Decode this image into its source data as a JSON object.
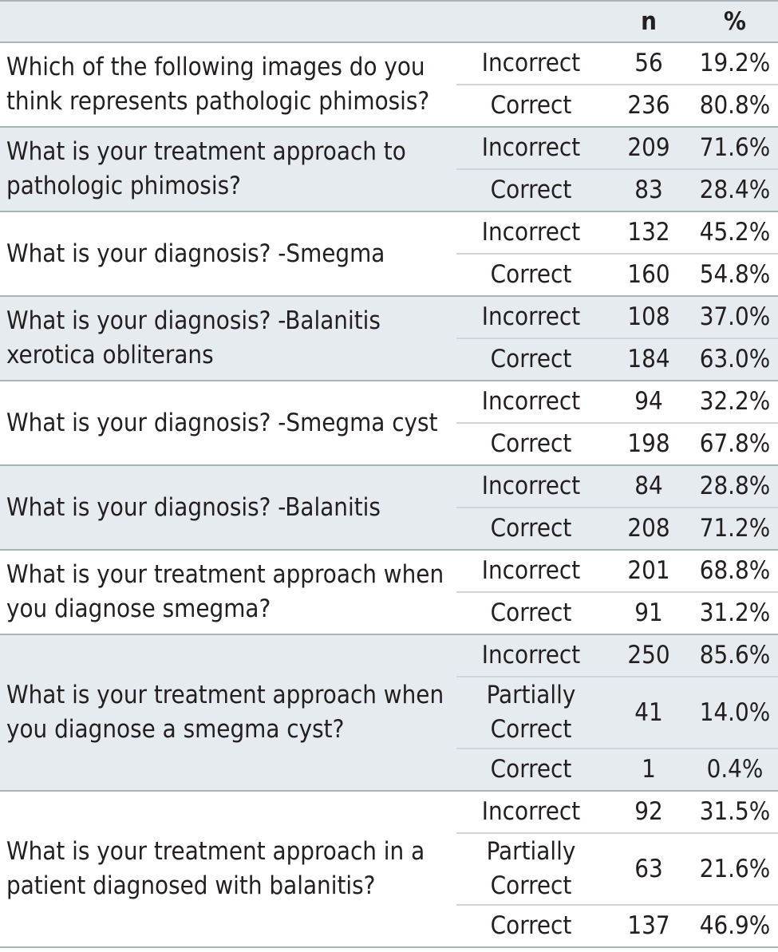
{
  "header": {
    "col1": "",
    "col2": "",
    "col3": "n",
    "col4": "%"
  },
  "questions": [
    {
      "question": "Which of the following images do you think represents pathologic phimosis?",
      "rows": [
        {
          "answer": "Incorrect",
          "n": "56",
          "pct": "19.2%"
        },
        {
          "answer": "Correct",
          "n": "236",
          "pct": "80.8%"
        }
      ]
    },
    {
      "question": "What is your treatment approach to pathologic phimosis?",
      "rows": [
        {
          "answer": "Incorrect",
          "n": "209",
          "pct": "71.6%"
        },
        {
          "answer": "Correct",
          "n": "83",
          "pct": "28.4%"
        }
      ]
    },
    {
      "question": "What is your diagnosis? -Smegma",
      "rows": [
        {
          "answer": "Incorrect",
          "n": "132",
          "pct": "45.2%"
        },
        {
          "answer": "Correct",
          "n": "160",
          "pct": "54.8%"
        }
      ]
    },
    {
      "question": "What is your diagnosis? -Balanitis xerotica obliterans",
      "rows": [
        {
          "answer": "Incorrect",
          "n": "108",
          "pct": "37.0%"
        },
        {
          "answer": "Correct",
          "n": "184",
          "pct": "63.0%"
        }
      ]
    },
    {
      "question": "What is your diagnosis? -Smegma cyst",
      "rows": [
        {
          "answer": "Incorrect",
          "n": "94",
          "pct": "32.2%"
        },
        {
          "answer": "Correct",
          "n": "198",
          "pct": "67.8%"
        }
      ]
    },
    {
      "question": "What is your diagnosis? -Balanitis",
      "rows": [
        {
          "answer": "Incorrect",
          "n": "84",
          "pct": "28.8%"
        },
        {
          "answer": "Correct",
          "n": "208",
          "pct": "71.2%"
        }
      ]
    },
    {
      "question": "What is your treatment approach when you diagnose smegma?",
      "rows": [
        {
          "answer": "Incorrect",
          "n": "201",
          "pct": "68.8%"
        },
        {
          "answer": "Correct",
          "n": "91",
          "pct": "31.2%"
        }
      ]
    },
    {
      "question": "What is your treatment approach when you diagnose a smegma cyst?",
      "rows": [
        {
          "answer": "Incorrect",
          "n": "250",
          "pct": "85.6%"
        },
        {
          "answer": "Partially Correct",
          "n": "41",
          "pct": "14.0%"
        },
        {
          "answer": "Correct",
          "n": "1",
          "pct": "0.4%"
        }
      ]
    },
    {
      "question": "What is your treatment approach in a patient diagnosed with balanitis?",
      "rows": [
        {
          "answer": "Incorrect",
          "n": "92",
          "pct": "31.5%"
        },
        {
          "answer": "Partially Correct",
          "n": "63",
          "pct": "21.6%"
        },
        {
          "answer": "Correct",
          "n": "137",
          "pct": "46.9%"
        }
      ]
    }
  ],
  "colors": {
    "header_bg": "#e6ebef",
    "shade_bg": "#e6ebef",
    "rule": "#a8b3ba",
    "text": "#231f20"
  }
}
